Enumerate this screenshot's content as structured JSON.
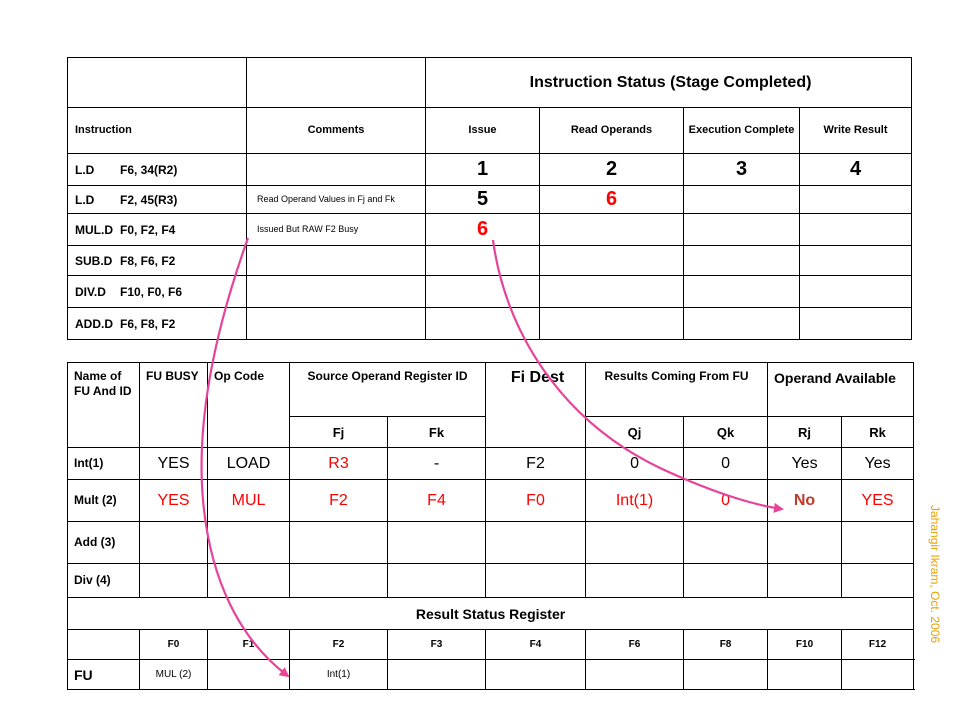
{
  "instruction_status": {
    "title": "Instruction Status (Stage Completed)",
    "columns": [
      "Instruction",
      "Comments",
      "Issue",
      "Read Operands",
      "Execution Complete",
      "Write Result"
    ],
    "rows": [
      {
        "op": "L.D",
        "args": "F6, 34(R2)",
        "comment": "",
        "issue": "1",
        "read": "2",
        "exec": "3",
        "write": "4"
      },
      {
        "op": "L.D",
        "args": "F2, 45(R3)",
        "comment": "Read Operand Values in Fj and Fk",
        "issue": "5",
        "read": "6",
        "exec": "",
        "write": ""
      },
      {
        "op": "MUL.D",
        "args": "F0, F2, F4",
        "comment": "Issued But RAW F2 Busy",
        "issue": "6",
        "read": "",
        "exec": "",
        "write": ""
      },
      {
        "op": "SUB.D",
        "args": "F8, F6, F2",
        "comment": "",
        "issue": "",
        "read": "",
        "exec": "",
        "write": ""
      },
      {
        "op": "DIV.D",
        "args": "F10, F0, F6",
        "comment": "",
        "issue": "",
        "read": "",
        "exec": "",
        "write": ""
      },
      {
        "op": "ADD.D",
        "args": "F6, F8, F2",
        "comment": "",
        "issue": "",
        "read": "",
        "exec": "",
        "write": ""
      }
    ],
    "colors": {
      "normal": "#000000",
      "highlight": "#ff0000"
    }
  },
  "fu_status": {
    "headers": {
      "name": "Name of FU And ID",
      "busy": "FU BUSY",
      "op": "Op Code",
      "source": "Source Operand Register ID",
      "fi": "Fi Dest",
      "results": "Results Coming From FU",
      "avail": "Operand Available",
      "fj": "Fj",
      "fk": "Fk",
      "qj": "Qj",
      "qk": "Qk",
      "rj": "Rj",
      "rk": "Rk"
    },
    "rows": [
      {
        "name": "Int(1)",
        "busy": "YES",
        "op": "LOAD",
        "fj": "R3",
        "fk": "-",
        "fi": "F2",
        "qj": "0",
        "qk": "0",
        "rj": "Yes",
        "rk": "Yes"
      },
      {
        "name": "Mult (2)",
        "busy": "YES",
        "op": "MUL",
        "fj": "F2",
        "fk": "F4",
        "fi": "F0",
        "qj": "Int(1)",
        "qk": "0",
        "rj": "No",
        "rk": "YES"
      },
      {
        "name": "Add (3)",
        "busy": "",
        "op": "",
        "fj": "",
        "fk": "",
        "fi": "",
        "qj": "",
        "qk": "",
        "rj": "",
        "rk": ""
      },
      {
        "name": "Div (4)",
        "busy": "",
        "op": "",
        "fj": "",
        "fk": "",
        "fi": "",
        "qj": "",
        "qk": "",
        "rj": "",
        "rk": ""
      }
    ]
  },
  "result_status": {
    "title": "Result Status Register",
    "registers": [
      "F0",
      "F1",
      "F2",
      "F3",
      "F4",
      "F6",
      "F8",
      "F10",
      "F12"
    ],
    "fu_label": "FU",
    "fu_values": [
      "MUL (2)",
      "",
      "Int(1)",
      "",
      "",
      "",
      "",
      "",
      ""
    ]
  },
  "credit": "Jahangir Ikram, Oct. 2006",
  "arrow_color": "#e8439a"
}
